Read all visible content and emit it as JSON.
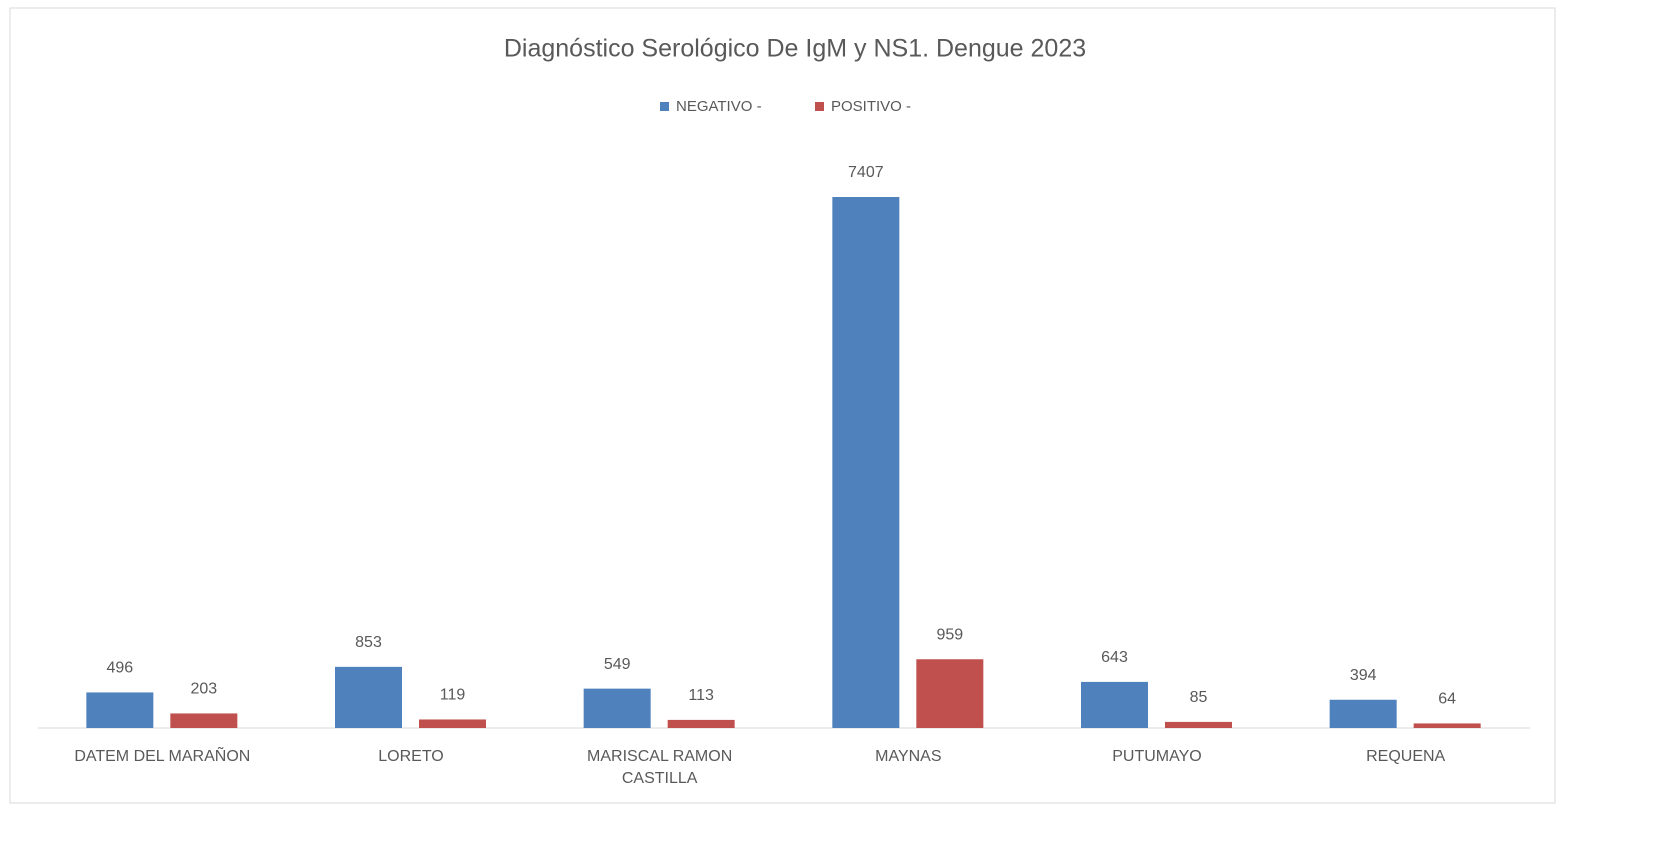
{
  "chart_data": {
    "type": "bar",
    "title": "Diagnóstico Serológico De IgM y NS1. Dengue 2023",
    "categories": [
      "DATEM DEL MARAÑON",
      "LORETO",
      "MARISCAL RAMON CASTILLA",
      "MAYNAS",
      "PUTUMAYO",
      "REQUENA"
    ],
    "series": [
      {
        "name": "NEGATIVO -",
        "color": "#4f81bd",
        "values": [
          496,
          853,
          549,
          7407,
          643,
          394
        ]
      },
      {
        "name": "POSITIVO -",
        "color": "#c0504d",
        "values": [
          203,
          119,
          113,
          959,
          85,
          64
        ]
      }
    ],
    "legend": "top"
  }
}
